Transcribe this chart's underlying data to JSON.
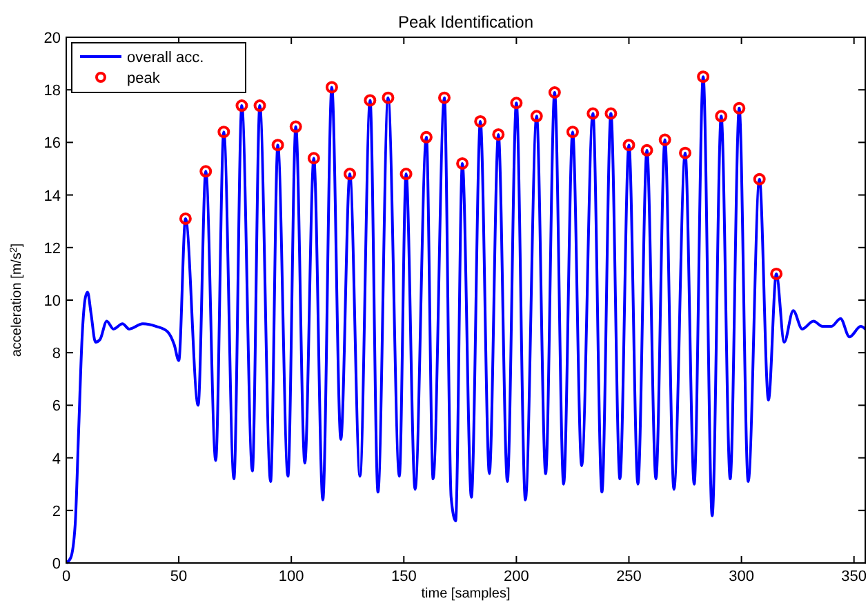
{
  "chart_data": {
    "type": "line",
    "title": "Peak Identification",
    "xlabel": "time [samples]",
    "ylabel": "acceleration [m/s$^{2}$]",
    "xlim": [
      0,
      355
    ],
    "ylim": [
      0,
      20
    ],
    "xticks": [
      0,
      50,
      100,
      150,
      200,
      250,
      300,
      350
    ],
    "yticks": [
      0,
      2,
      4,
      6,
      8,
      10,
      12,
      14,
      16,
      18,
      20
    ],
    "grid": false,
    "legend": "top left",
    "series": [
      {
        "name": "overall acc.",
        "color": "#0000ff",
        "marker": "none",
        "line_style": "solid",
        "x": [
          0,
          2,
          4,
          5.5,
          7,
          8.5,
          9.5,
          11,
          13,
          15,
          18,
          21,
          25,
          28,
          34,
          40,
          45,
          48,
          50,
          53,
          58.6,
          62,
          66.4,
          70,
          74.5,
          78,
          82.7,
          86,
          90.8,
          94,
          98.5,
          102,
          106,
          110,
          114,
          118,
          122,
          126,
          130.5,
          135,
          138.5,
          143,
          148,
          151,
          155,
          160,
          163,
          168,
          171,
          173,
          176,
          180,
          184,
          188,
          192,
          196,
          200,
          204,
          209,
          213,
          217,
          221,
          225,
          229,
          234,
          238,
          242,
          246,
          250,
          254,
          258,
          262,
          266,
          270,
          275,
          279,
          283,
          287,
          291,
          295,
          299,
          303,
          308,
          312,
          315.5,
          319,
          323,
          327,
          332,
          336,
          340,
          344,
          348,
          353,
          355
        ],
        "values": [
          0,
          0.2,
          1.5,
          5,
          8.5,
          10.1,
          10.3,
          9.5,
          8.4,
          8.5,
          9.2,
          8.9,
          9.1,
          8.9,
          9.1,
          9,
          8.8,
          8.3,
          7.7,
          13.1,
          6,
          14.9,
          3.9,
          16.4,
          3.2,
          17.4,
          3.5,
          17.4,
          3.1,
          15.9,
          3.3,
          16.6,
          3.8,
          15.4,
          2.4,
          18.1,
          4.7,
          14.8,
          3.3,
          17.6,
          2.7,
          17.7,
          3.3,
          14.8,
          2.8,
          16.2,
          3.2,
          17.7,
          2.5,
          1.6,
          15.2,
          2.5,
          16.8,
          3.4,
          16.3,
          3.1,
          17.5,
          2.4,
          17,
          3.4,
          17.9,
          3,
          16.4,
          3.7,
          17.1,
          2.7,
          17.1,
          3.2,
          15.9,
          3,
          15.7,
          3.2,
          16.1,
          2.8,
          15.6,
          3,
          18.5,
          1.8,
          17,
          3.2,
          17.3,
          3.1,
          14.6,
          6.2,
          11,
          8.4,
          9.6,
          8.9,
          9.2,
          9,
          9,
          9.3,
          8.6,
          9,
          8.9
        ]
      },
      {
        "name": "peak",
        "type": "scatter",
        "color": "#ff0000",
        "marker": "circle",
        "x": [
          53,
          62,
          70,
          78,
          86,
          94,
          102,
          110,
          118,
          126,
          135,
          143,
          151,
          160,
          168,
          176,
          184,
          192,
          200,
          209,
          217,
          225,
          234,
          242,
          250,
          258,
          266,
          275,
          283,
          291,
          299,
          308,
          315.5
        ],
        "values": [
          13.1,
          14.9,
          16.4,
          17.4,
          17.4,
          15.9,
          16.6,
          15.4,
          18.1,
          14.8,
          17.6,
          17.7,
          14.8,
          16.2,
          17.7,
          15.2,
          16.8,
          16.3,
          17.5,
          17,
          17.9,
          16.4,
          17.1,
          17.1,
          15.9,
          15.7,
          16.1,
          15.6,
          18.5,
          17,
          17.3,
          14.6,
          11
        ]
      }
    ]
  }
}
